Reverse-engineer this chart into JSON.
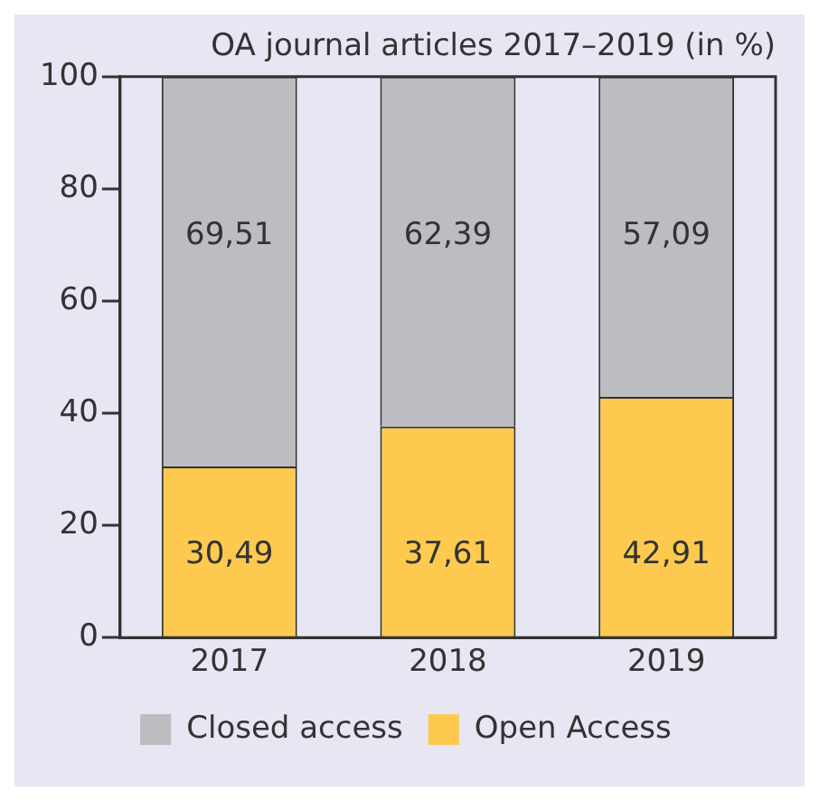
{
  "chart_data": {
    "type": "bar",
    "title": "OA journal articles 2017–2019 (in %)",
    "categories": [
      "2017",
      "2018",
      "2019"
    ],
    "series": [
      {
        "name": "Open Access",
        "color": "#fdca4f",
        "values": [
          30.49,
          37.61,
          42.91
        ],
        "value_labels": [
          "30,49",
          "37,61",
          "42,91"
        ]
      },
      {
        "name": "Closed access",
        "color": "#bcbdc1",
        "values": [
          69.51,
          62.39,
          57.09
        ],
        "value_labels": [
          "69,51",
          "62,39",
          "57,09"
        ]
      }
    ],
    "stacked": true,
    "ylim": [
      0,
      100
    ],
    "yticks": [
      0,
      20,
      40,
      60,
      80,
      100
    ],
    "grid": false,
    "legend": "bottom"
  }
}
